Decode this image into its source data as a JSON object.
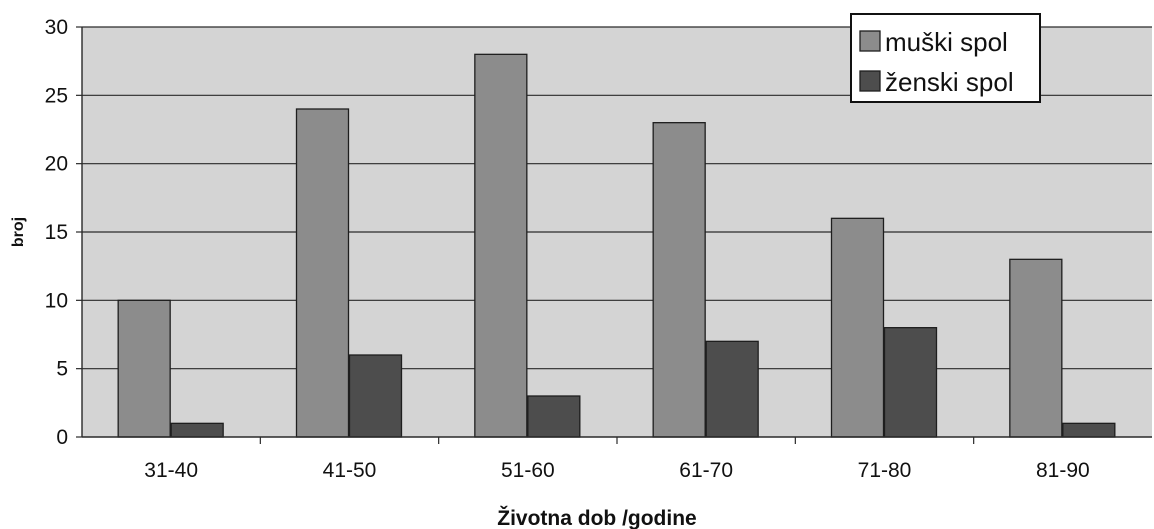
{
  "chart_data": {
    "type": "bar",
    "title": "",
    "xlabel": "Životna dob /godine",
    "ylabel": "broj",
    "categories": [
      "31-40",
      "41-50",
      "51-60",
      "61-70",
      "71-80",
      "81-90"
    ],
    "series": [
      {
        "name": "muški spol",
        "values": [
          10,
          24,
          28,
          23,
          16,
          13
        ],
        "color": "#8c8c8c"
      },
      {
        "name": "ženski spol",
        "values": [
          1,
          6,
          3,
          7,
          8,
          1
        ],
        "color": "#4d4d4d"
      }
    ],
    "ylim": [
      0,
      30
    ],
    "yticks": [
      0,
      5,
      10,
      15,
      20,
      25,
      30
    ],
    "grid": true,
    "legend_position": "top-right",
    "plot_background": "#d4d4d4"
  }
}
